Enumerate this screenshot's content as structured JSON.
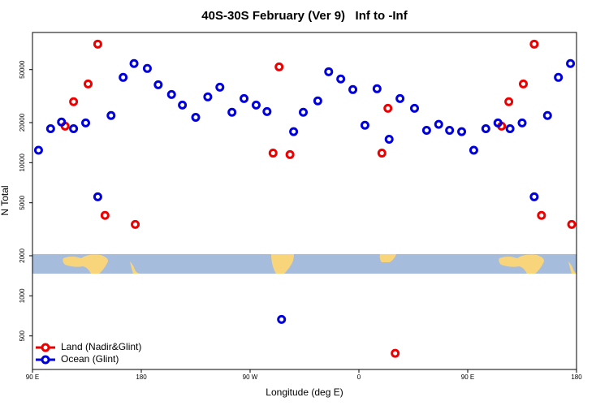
{
  "chart_data": {
    "type": "scatter",
    "title": "40S-30S February (Ver 9)   Inf to -Inf",
    "x_label": "Longitude (deg E)",
    "y_label": "N Total",
    "ylog": true,
    "legend": "bottom-left",
    "xlim": [
      90,
      540
    ],
    "ylim": [
      280,
      95000
    ],
    "xticks": [
      {
        "value": 90,
        "label": "90 E"
      },
      {
        "value": 180,
        "label": "180"
      },
      {
        "value": 270,
        "label": "90 W"
      },
      {
        "value": 360,
        "label": "0"
      },
      {
        "value": 450,
        "label": "90 E"
      },
      {
        "value": 540,
        "label": "180"
      }
    ],
    "yticks": [
      500,
      1000,
      2000,
      5000,
      10000,
      20000,
      50000
    ],
    "series": [
      {
        "name": "Land (Nadir&Glint)",
        "color": "#ee0000",
        "x": [
          117,
          124,
          136,
          144,
          150,
          175,
          289,
          294,
          303,
          379,
          384,
          390,
          478,
          484,
          496,
          505,
          511,
          536
        ],
        "values": [
          18800,
          28700,
          39000,
          77700,
          4020,
          3440,
          11800,
          52400,
          11500,
          11800,
          25600,
          370,
          18800,
          28700,
          39000,
          77700,
          4020,
          3440
        ]
      },
      {
        "name": "Ocean (Glint)",
        "color": "#0000dd",
        "x": [
          95,
          105,
          114,
          124,
          134,
          144,
          155,
          165,
          174,
          185,
          194,
          205,
          214,
          225,
          235,
          245,
          255,
          265,
          275,
          284,
          296,
          306,
          314,
          326,
          335,
          345,
          355,
          365,
          375,
          385,
          394,
          406,
          416,
          426,
          435,
          445,
          455,
          465,
          475,
          485,
          495,
          505,
          516,
          525,
          535
        ],
        "values": [
          12400,
          18000,
          20200,
          18000,
          19900,
          5540,
          22600,
          43700,
          55500,
          51000,
          38500,
          32500,
          27100,
          21900,
          31200,
          36900,
          23900,
          30300,
          27100,
          24200,
          665,
          17100,
          23900,
          29100,
          48200,
          42500,
          35400,
          19100,
          35900,
          15000,
          30300,
          25600,
          17500,
          19400,
          17500,
          17100,
          12400,
          18000,
          19900,
          18000,
          19900,
          5540,
          22600,
          43700,
          55500
        ]
      }
    ]
  }
}
